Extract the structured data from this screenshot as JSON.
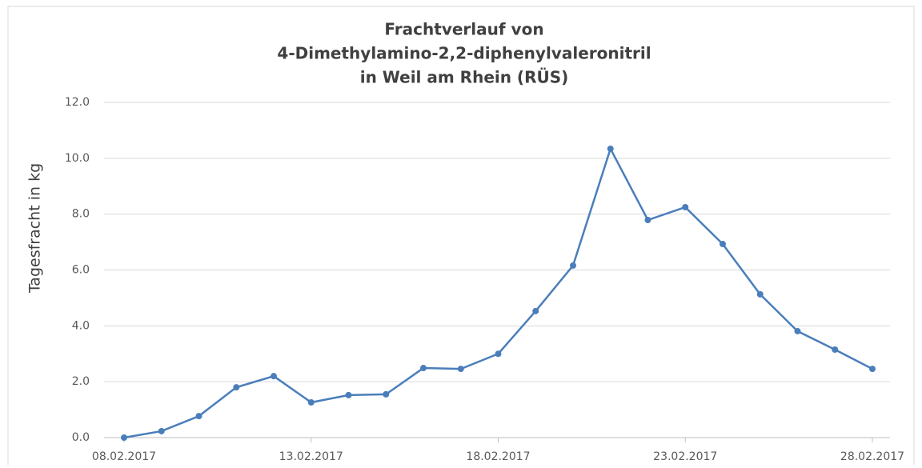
{
  "chart_data": {
    "type": "line",
    "title": [
      "Frachtverlauf von",
      "4-Dimethylamino-2,2-diphenylvaleronitril",
      "in Weil am Rhein (RÜS)"
    ],
    "y_label": "Tagesfracht in kg",
    "x": [
      "08.02.2017",
      "09.02.2017",
      "10.02.2017",
      "11.02.2017",
      "12.02.2017",
      "13.02.2017",
      "14.02.2017",
      "15.02.2017",
      "16.02.2017",
      "17.02.2017",
      "18.02.2017",
      "19.02.2017",
      "20.02.2017",
      "21.02.2017",
      "22.02.2017",
      "23.02.2017",
      "24.02.2017",
      "25.02.2017",
      "26.02.2017",
      "27.02.2017",
      "28.02.2017"
    ],
    "xticks": [
      "08.02.2017",
      "13.02.2017",
      "18.02.2017",
      "23.02.2017",
      "28.02.2017"
    ],
    "series": [
      {
        "name": "Tagesfracht",
        "color": "#4a7ebb",
        "values": [
          0.0,
          0.23,
          0.77,
          1.8,
          2.2,
          1.26,
          1.52,
          1.55,
          2.49,
          2.46,
          3.0,
          4.53,
          6.16,
          10.34,
          7.79,
          8.25,
          6.93,
          5.13,
          3.81,
          3.15,
          2.46
        ]
      }
    ],
    "ylim": [
      0,
      12
    ],
    "yticks": [
      {
        "value": 0,
        "label": "0.0"
      },
      {
        "value": 2,
        "label": "2.0"
      },
      {
        "value": 4,
        "label": "4.0"
      },
      {
        "value": 6,
        "label": "6.0"
      },
      {
        "value": 8,
        "label": "8.0"
      },
      {
        "value": 10,
        "label": "10.0"
      },
      {
        "value": 12,
        "label": "12.0"
      }
    ],
    "grid": true
  }
}
